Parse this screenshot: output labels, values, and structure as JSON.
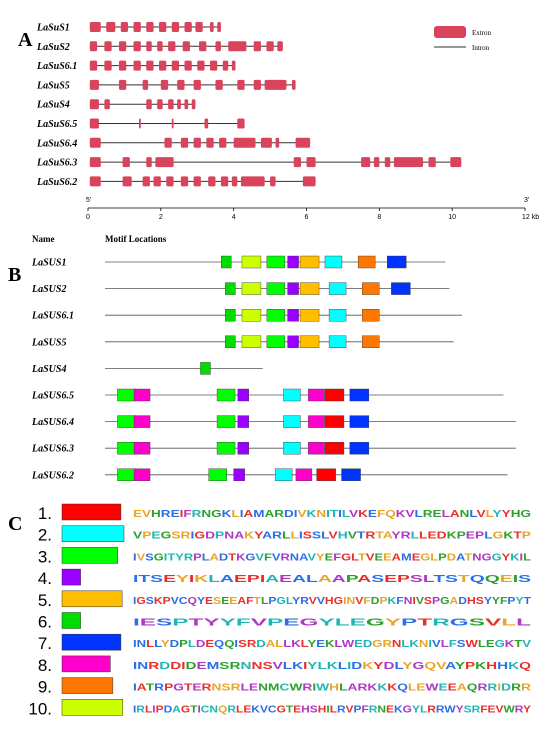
{
  "panelA": {
    "letter": "A",
    "legend": {
      "exon_label": "Extron",
      "intron_label": "Intron",
      "exon_color": "#d9435b",
      "intron_color": "#333333"
    },
    "axis": {
      "min": 0,
      "max": 12,
      "ticks": [
        "0",
        "2",
        "4",
        "6",
        "8",
        "10",
        "12 kb"
      ],
      "end_left": "5'",
      "end_right": "3'"
    },
    "genes": [
      {
        "name": "LaSuS1",
        "exons": [
          [
            0.05,
            0.35
          ],
          [
            0.5,
            0.75
          ],
          [
            0.9,
            1.1
          ],
          [
            1.25,
            1.45
          ],
          [
            1.6,
            1.8
          ],
          [
            1.95,
            2.15
          ],
          [
            2.3,
            2.5
          ],
          [
            2.65,
            2.85
          ],
          [
            2.95,
            3.15
          ],
          [
            3.35,
            3.45
          ],
          [
            3.55,
            3.65
          ]
        ]
      },
      {
        "name": "LaSuS2",
        "exons": [
          [
            0.05,
            0.25
          ],
          [
            0.45,
            0.65
          ],
          [
            0.85,
            1.05
          ],
          [
            1.25,
            1.45
          ],
          [
            1.6,
            1.75
          ],
          [
            1.9,
            2.05
          ],
          [
            2.2,
            2.4
          ],
          [
            2.6,
            2.8
          ],
          [
            3.05,
            3.25
          ],
          [
            3.5,
            3.65
          ],
          [
            3.85,
            4.35
          ],
          [
            4.55,
            4.75
          ],
          [
            4.9,
            5.1
          ],
          [
            5.2,
            5.35
          ]
        ]
      },
      {
        "name": "LaSuS6.1",
        "exons": [
          [
            0.05,
            0.25
          ],
          [
            0.45,
            0.65
          ],
          [
            0.85,
            1.05
          ],
          [
            1.25,
            1.45
          ],
          [
            1.6,
            1.8
          ],
          [
            1.95,
            2.15
          ],
          [
            2.3,
            2.5
          ],
          [
            2.65,
            2.85
          ],
          [
            3.0,
            3.2
          ],
          [
            3.35,
            3.55
          ],
          [
            3.7,
            3.85
          ],
          [
            3.95,
            4.05
          ]
        ]
      },
      {
        "name": "LaSuS5",
        "exons": [
          [
            0.05,
            0.3
          ],
          [
            0.85,
            1.05
          ],
          [
            1.5,
            1.65
          ],
          [
            2.0,
            2.2
          ],
          [
            2.45,
            2.65
          ],
          [
            2.9,
            3.1
          ],
          [
            3.5,
            3.7
          ],
          [
            4.1,
            4.3
          ],
          [
            4.55,
            4.75
          ],
          [
            4.85,
            5.45
          ],
          [
            5.6,
            5.7
          ]
        ]
      },
      {
        "name": "LaSuS4",
        "exons": [
          [
            0.05,
            0.3
          ],
          [
            0.45,
            0.6
          ],
          [
            1.6,
            1.75
          ],
          [
            1.9,
            2.05
          ],
          [
            2.2,
            2.35
          ],
          [
            2.45,
            2.55
          ],
          [
            2.65,
            2.75
          ],
          [
            2.85,
            2.95
          ]
        ]
      },
      {
        "name": "LaSuS6.5",
        "exons": [
          [
            0.05,
            0.3
          ],
          [
            1.4,
            1.45
          ],
          [
            2.3,
            2.35
          ],
          [
            3.2,
            3.3
          ],
          [
            4.1,
            4.3
          ]
        ]
      },
      {
        "name": "LaSuS6.4",
        "exons": [
          [
            0.05,
            0.35
          ],
          [
            2.1,
            2.3
          ],
          [
            2.55,
            2.75
          ],
          [
            2.9,
            3.1
          ],
          [
            3.25,
            3.45
          ],
          [
            3.6,
            3.8
          ],
          [
            4.0,
            4.6
          ],
          [
            4.75,
            5.05
          ],
          [
            5.15,
            5.25
          ],
          [
            5.7,
            6.1
          ]
        ]
      },
      {
        "name": "LaSuS6.3",
        "exons": [
          [
            0.05,
            0.35
          ],
          [
            0.95,
            1.15
          ],
          [
            1.6,
            1.75
          ],
          [
            1.85,
            2.35
          ],
          [
            5.65,
            5.85
          ],
          [
            6.0,
            6.25
          ],
          [
            7.5,
            7.75
          ],
          [
            7.85,
            8.0
          ],
          [
            8.15,
            8.3
          ],
          [
            8.4,
            9.2
          ],
          [
            9.35,
            9.55
          ],
          [
            9.95,
            10.25
          ]
        ]
      },
      {
        "name": "LaSuS6.2",
        "exons": [
          [
            0.05,
            0.35
          ],
          [
            0.95,
            1.2
          ],
          [
            1.5,
            1.7
          ],
          [
            1.8,
            2.0
          ],
          [
            2.15,
            2.35
          ],
          [
            2.55,
            2.75
          ],
          [
            2.9,
            3.1
          ],
          [
            3.3,
            3.5
          ],
          [
            3.65,
            3.85
          ],
          [
            3.95,
            4.1
          ],
          [
            4.2,
            4.85
          ],
          [
            5.0,
            5.15
          ],
          [
            5.9,
            6.25
          ]
        ]
      }
    ]
  },
  "panelB": {
    "letter": "B",
    "header_name": "Name",
    "header_motifs": "Motif Locations",
    "genes": [
      {
        "name": "LaSUS1",
        "length": 0.82,
        "motifs": [
          [
            6,
            0.28
          ],
          [
            10,
            0.33
          ],
          [
            3,
            0.39
          ],
          [
            4,
            0.44
          ],
          [
            5,
            0.47
          ],
          [
            2,
            0.53
          ],
          [
            9,
            0.61
          ],
          [
            7,
            0.68
          ]
        ]
      },
      {
        "name": "LaSUS2",
        "length": 0.83,
        "motifs": [
          [
            6,
            0.29
          ],
          [
            10,
            0.33
          ],
          [
            3,
            0.39
          ],
          [
            4,
            0.44
          ],
          [
            5,
            0.47
          ],
          [
            2,
            0.54
          ],
          [
            9,
            0.62
          ],
          [
            7,
            0.69
          ]
        ]
      },
      {
        "name": "LaSUS6.1",
        "length": 0.86,
        "motifs": [
          [
            6,
            0.29
          ],
          [
            10,
            0.33
          ],
          [
            3,
            0.39
          ],
          [
            4,
            0.44
          ],
          [
            5,
            0.47
          ],
          [
            2,
            0.54
          ],
          [
            9,
            0.62
          ]
        ]
      },
      {
        "name": "LaSUS5",
        "length": 0.84,
        "motifs": [
          [
            6,
            0.29
          ],
          [
            10,
            0.33
          ],
          [
            3,
            0.39
          ],
          [
            4,
            0.44
          ],
          [
            5,
            0.47
          ],
          [
            2,
            0.54
          ],
          [
            9,
            0.62
          ]
        ]
      },
      {
        "name": "LaSUS4",
        "length": 0.38,
        "motifs": [
          [
            6,
            0.23
          ]
        ]
      },
      {
        "name": "LaSUS6.5",
        "length": 0.96,
        "motifs": [
          [
            3,
            0.03
          ],
          [
            8,
            0.07
          ],
          [
            3,
            0.27
          ],
          [
            4,
            0.32
          ],
          [
            2,
            0.43
          ],
          [
            8,
            0.49
          ],
          [
            1,
            0.53
          ],
          [
            7,
            0.59
          ]
        ]
      },
      {
        "name": "LaSUS6.4",
        "length": 0.99,
        "motifs": [
          [
            3,
            0.03
          ],
          [
            8,
            0.07
          ],
          [
            3,
            0.27
          ],
          [
            4,
            0.32
          ],
          [
            2,
            0.43
          ],
          [
            8,
            0.49
          ],
          [
            1,
            0.53
          ],
          [
            7,
            0.59
          ]
        ]
      },
      {
        "name": "LaSUS6.3",
        "length": 0.99,
        "motifs": [
          [
            3,
            0.03
          ],
          [
            8,
            0.07
          ],
          [
            3,
            0.27
          ],
          [
            4,
            0.32
          ],
          [
            2,
            0.43
          ],
          [
            8,
            0.49
          ],
          [
            1,
            0.53
          ],
          [
            7,
            0.59
          ]
        ]
      },
      {
        "name": "LaSUS6.2",
        "length": 0.97,
        "motifs": [
          [
            3,
            0.03
          ],
          [
            8,
            0.07
          ],
          [
            3,
            0.25
          ],
          [
            4,
            0.31
          ],
          [
            2,
            0.41
          ],
          [
            8,
            0.46
          ],
          [
            1,
            0.51
          ],
          [
            7,
            0.57
          ]
        ]
      }
    ]
  },
  "panelC": {
    "letter": "C",
    "motifs": [
      {
        "num": "1.",
        "color": "#ff0000",
        "width": 0.95,
        "logo": "EVHREIFRNGKLIAMARDIVKNITILVKEFQKVLRELANLVLYYHG"
      },
      {
        "num": "2.",
        "color": "#00ffff",
        "width": 1.0,
        "logo": "VPEGSRIGDPNAKYARLLISSLVHVTRTAYRLLEDKPEPLGKTP"
      },
      {
        "num": "3.",
        "color": "#00ff00",
        "width": 0.9,
        "logo": "IVSGITYRPLADTKGVFVRNAVYEFGLTVEEAMEGLPDATNGGYKIL"
      },
      {
        "num": "4.",
        "color": "#9900ff",
        "width": 0.3,
        "logo": "ITSEYIKLAEPIAEALAAPASEPSLTSTQQEIS"
      },
      {
        "num": "5.",
        "color": "#ffbf00",
        "width": 0.97,
        "logo": "IGSKPVCQYESEEAFTLPGLYRVVHGINVFDPKFNIVSPGADHSYYFPYT"
      },
      {
        "num": "6.",
        "color": "#00dd00",
        "width": 0.3,
        "logo": "IESPTYYFVPEGYLEGYPTRGSVLL"
      },
      {
        "num": "7.",
        "color": "#0033ff",
        "width": 0.95,
        "logo": "INLLYDPLDEQQISRDALLKLYEKLWEDGRNLKNIVLFSWLEGKTV"
      },
      {
        "num": "8.",
        "color": "#ff00cc",
        "width": 0.78,
        "logo": "INRDDIDEMSRNNSVLKIYLKLIDKYDLYGQVAYPKHHKQ"
      },
      {
        "num": "9.",
        "color": "#ff7700",
        "width": 0.82,
        "logo": "IATRPGTERNSRLENMCWRIWHLARKKKQLEWEEAQRRIDRR"
      },
      {
        "num": "10.",
        "color": "#ccff00",
        "width": 0.98,
        "logo": "IRLIPDAGTICNQRLEKVCGTEHSHILRVPFRNEKGYLRRWYSRFEVWRY"
      }
    ]
  }
}
